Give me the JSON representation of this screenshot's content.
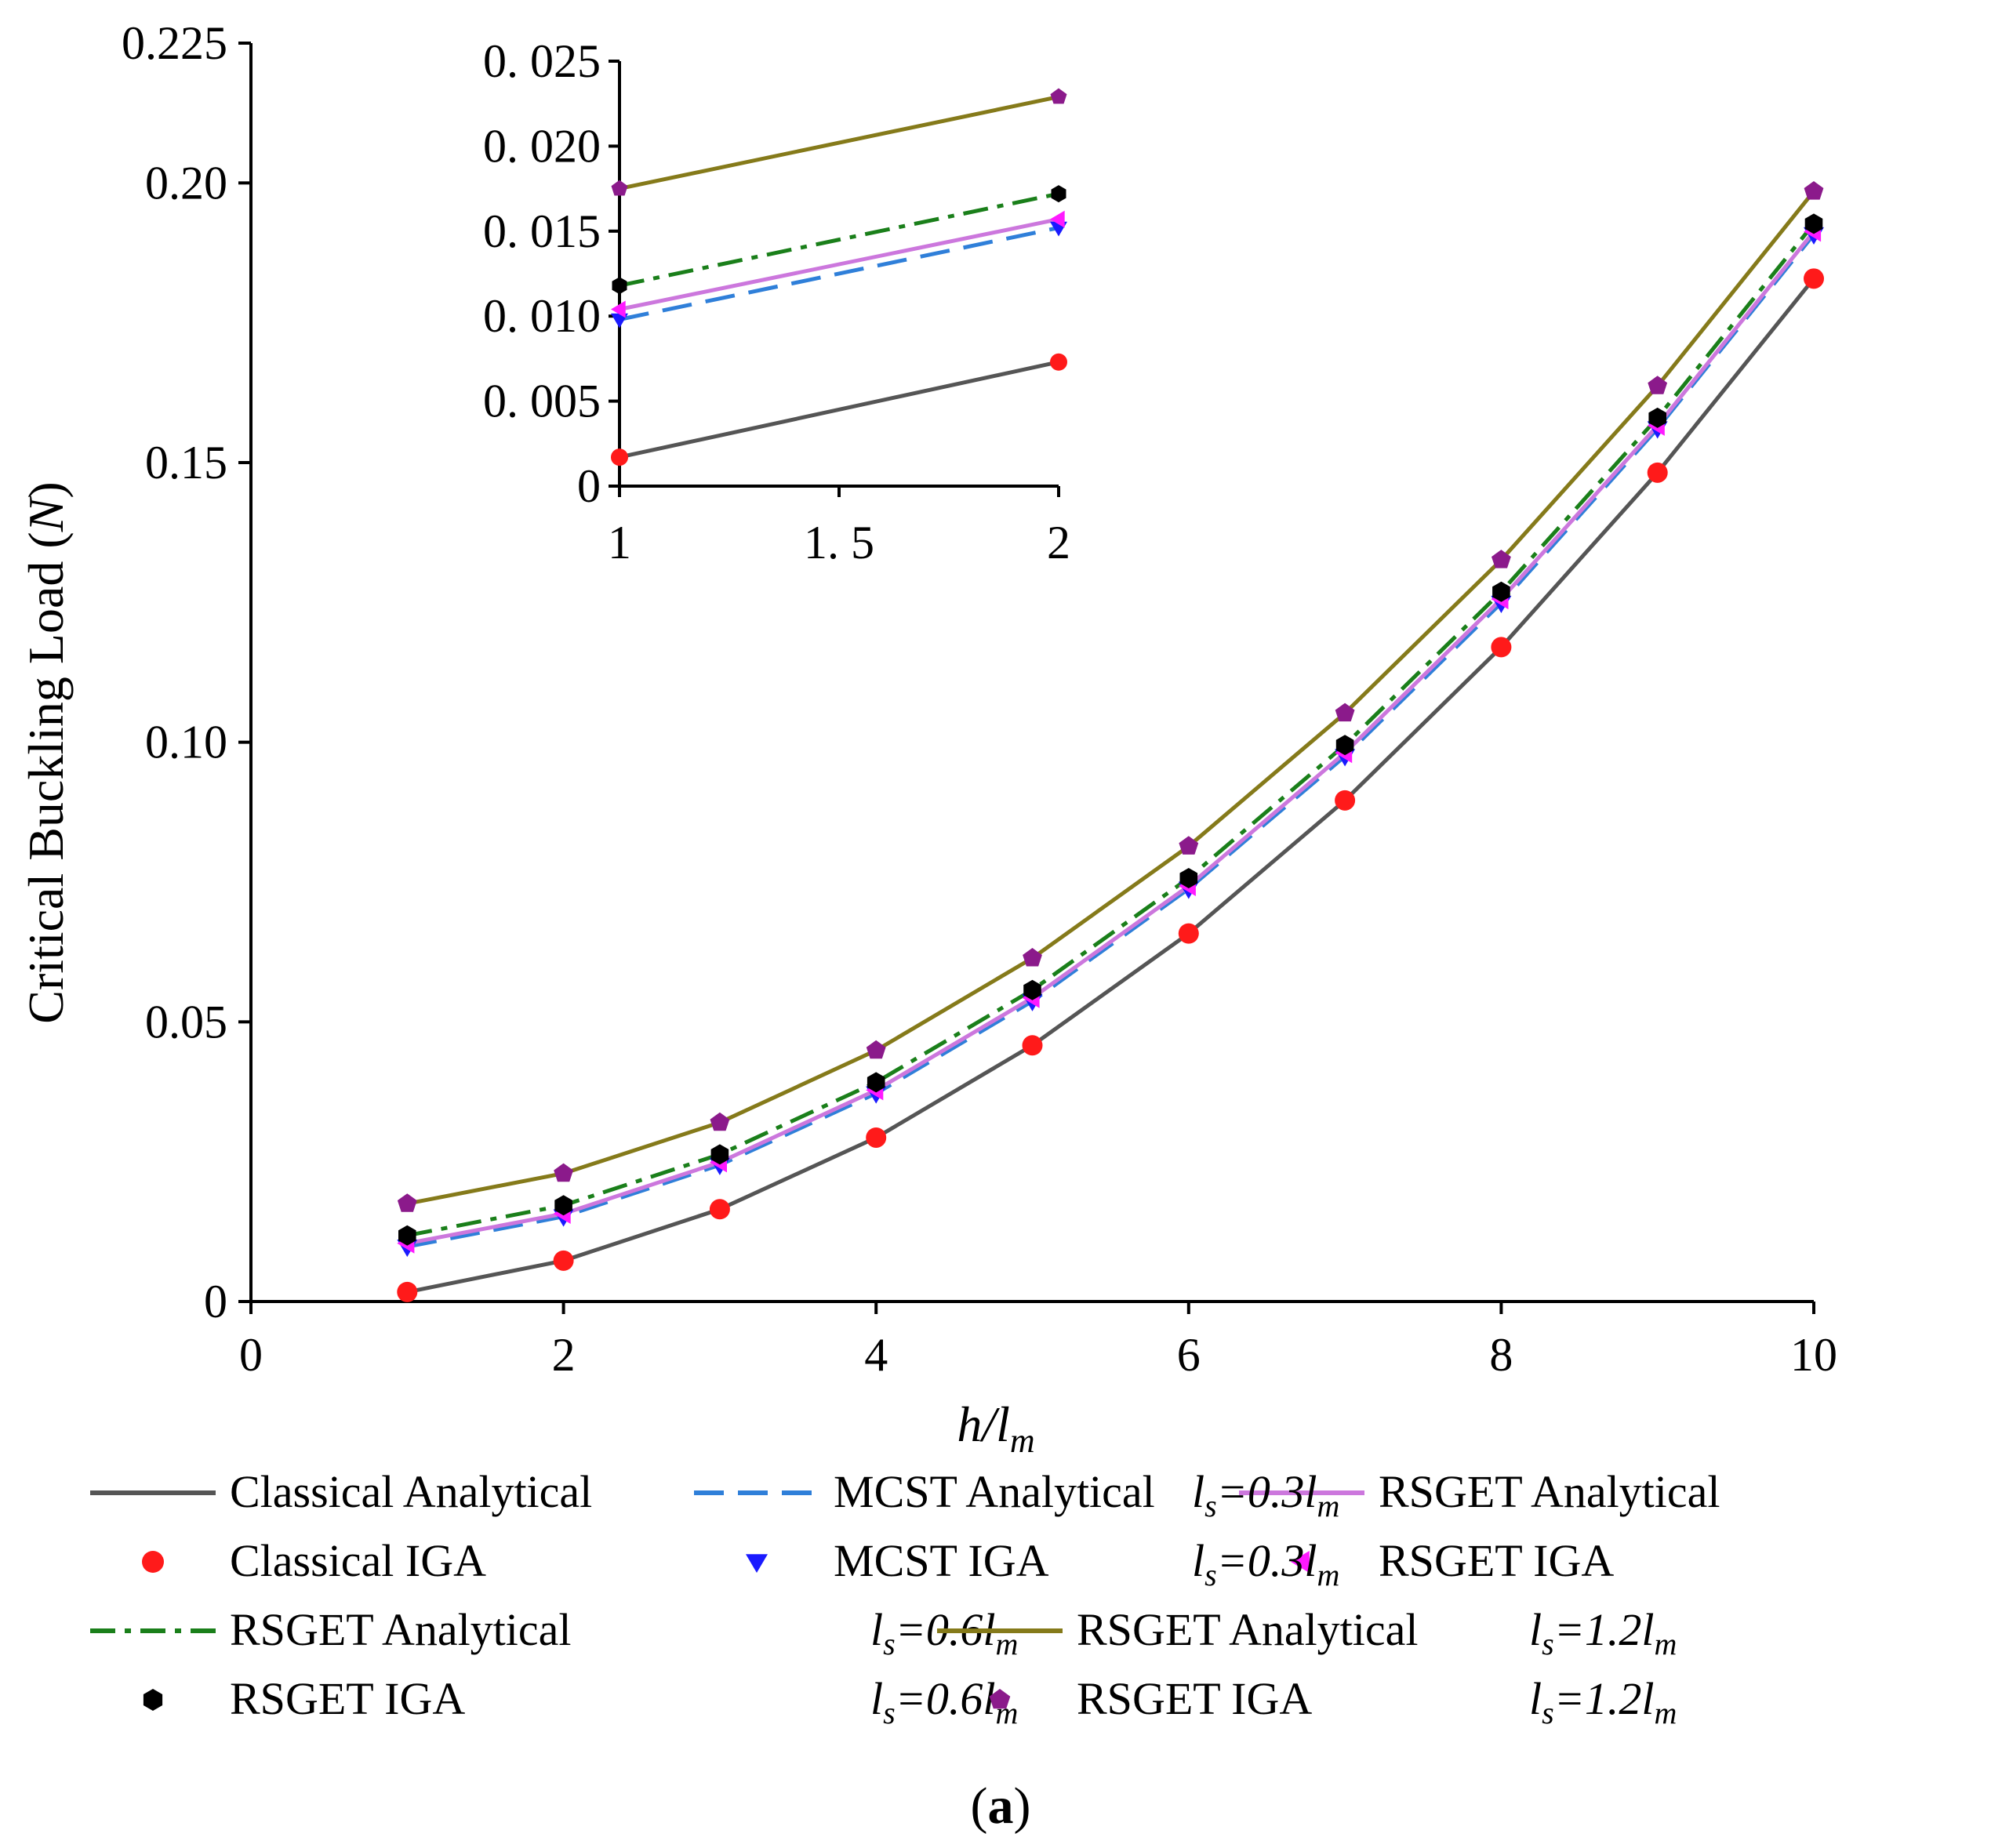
{
  "chart_data": [
    {
      "type": "line",
      "panel": "main",
      "xlabel_base": "h/l",
      "xlabel_sub": "m",
      "ylabel_text": "Critical Buckling Load (",
      "ylabel_unit": "N",
      "ylabel_close": ")",
      "xlim": [
        0,
        10
      ],
      "ylim": [
        0,
        0.225
      ],
      "x_ticks": [
        0,
        2,
        4,
        6,
        8,
        10
      ],
      "x_tick_labels": [
        "0",
        "2",
        "4",
        "6",
        "8",
        "10"
      ],
      "y_ticks": [
        0,
        0.05,
        0.1,
        0.15,
        0.2,
        0.225
      ],
      "y_tick_labels": [
        "0",
        "0.05",
        "0.10",
        "0.15",
        "0.20",
        "0.225"
      ],
      "x": [
        1,
        2,
        3,
        4,
        5,
        6,
        7,
        8,
        9,
        10
      ],
      "series": [
        {
          "name": "Classical Analytical",
          "kind": "line",
          "style": "solid",
          "color": "#555555",
          "values": [
            0.0017,
            0.0073,
            0.0165,
            0.0293,
            0.0458,
            0.0658,
            0.0896,
            0.117,
            0.1482,
            0.1829
          ]
        },
        {
          "name": "MCST Analytical",
          "kind": "line",
          "style": "dash",
          "color": "#2f7fd9",
          "values": [
            0.0098,
            0.0152,
            0.0244,
            0.0372,
            0.0537,
            0.0738,
            0.0975,
            0.1249,
            0.1561,
            0.1908
          ]
        },
        {
          "name": "RSGET Analytical ls=0.3lm",
          "kind": "line",
          "style": "solid",
          "color": "#cc77dd",
          "values": [
            0.0104,
            0.0157,
            0.0249,
            0.0378,
            0.0543,
            0.0743,
            0.0981,
            0.1256,
            0.1566,
            0.1913
          ]
        },
        {
          "name": "RSGET Analytical ls=0.6lm",
          "kind": "line",
          "style": "dashdot",
          "color": "#1a7f1a",
          "values": [
            0.0118,
            0.0172,
            0.0263,
            0.0392,
            0.0557,
            0.0757,
            0.0995,
            0.1269,
            0.158,
            0.1927
          ]
        },
        {
          "name": "RSGET Analytical ls=1.2lm",
          "kind": "line",
          "style": "solid",
          "color": "#857a1a",
          "values": [
            0.0175,
            0.0229,
            0.032,
            0.0449,
            0.0614,
            0.0814,
            0.1052,
            0.1326,
            0.1637,
            0.1985
          ]
        },
        {
          "name": "Classical IGA",
          "kind": "marker",
          "marker": "circle",
          "color": "#ff1a1a",
          "values": [
            0.0017,
            0.0073,
            0.0165,
            0.0293,
            0.0458,
            0.0658,
            0.0896,
            0.117,
            0.1482,
            0.1829
          ]
        },
        {
          "name": "MCST IGA",
          "kind": "marker",
          "marker": "triangle-down",
          "color": "#1a1aff",
          "values": [
            0.0098,
            0.0152,
            0.0244,
            0.0372,
            0.0537,
            0.0738,
            0.0975,
            0.1249,
            0.1561,
            0.1908
          ]
        },
        {
          "name": "RSGET IGA ls=0.3lm",
          "kind": "marker",
          "marker": "triangle-left",
          "color": "#ff1aff",
          "values": [
            0.0104,
            0.0157,
            0.0249,
            0.0378,
            0.0543,
            0.0743,
            0.0981,
            0.1256,
            0.1566,
            0.1913
          ]
        },
        {
          "name": "RSGET IGA ls=0.6lm",
          "kind": "marker",
          "marker": "hexagon",
          "color": "#000000",
          "values": [
            0.0118,
            0.0172,
            0.0263,
            0.0392,
            0.0557,
            0.0757,
            0.0995,
            0.1269,
            0.158,
            0.1927
          ]
        },
        {
          "name": "RSGET IGA ls=1.2lm",
          "kind": "marker",
          "marker": "pentagon",
          "color": "#8b1a8b",
          "values": [
            0.0175,
            0.0229,
            0.032,
            0.0449,
            0.0614,
            0.0814,
            0.1052,
            0.1326,
            0.1637,
            0.1985
          ]
        }
      ]
    },
    {
      "type": "line",
      "panel": "inset",
      "xlim": [
        1,
        2
      ],
      "ylim": [
        0,
        0.025
      ],
      "x_ticks": [
        1,
        1.5,
        2
      ],
      "x_tick_labels": [
        "1",
        "1. 5",
        "2"
      ],
      "y_ticks": [
        0,
        0.005,
        0.01,
        0.015,
        0.02,
        0.025
      ],
      "y_tick_labels": [
        "0",
        "0. 005",
        "0. 010",
        "0. 015",
        "0. 020",
        "0. 025"
      ],
      "x": [
        1,
        2
      ],
      "series_ref": "main"
    }
  ],
  "legend": [
    {
      "text": "Classical  Analytical",
      "suffix_base": "",
      "suffix_eq": "",
      "suffix_sub": ""
    },
    {
      "text": "MCST  Analytical",
      "suffix_base": "",
      "suffix_eq": "",
      "suffix_sub": ""
    },
    {
      "text": "RSGET  Analytical",
      "suffix_base": "l",
      "suffix_eq": "=0.3l",
      "suffix_sub": "m"
    },
    {
      "text": "Classical  IGA",
      "suffix_base": "",
      "suffix_eq": "",
      "suffix_sub": ""
    },
    {
      "text": "MCST  IGA",
      "suffix_base": "",
      "suffix_eq": "",
      "suffix_sub": ""
    },
    {
      "text": "RSGET   IGA",
      "suffix_base": "l",
      "suffix_eq": "=0.3l",
      "suffix_sub": "m"
    },
    {
      "text": "RSGET   Analytical",
      "suffix_base": "l",
      "suffix_eq": "=0.6l",
      "suffix_sub": "m"
    },
    {
      "text": "RSGET   Analytical",
      "suffix_base": "l",
      "suffix_eq": "=1.2l",
      "suffix_sub": "m"
    },
    {
      "text": "RSGET   IGA",
      "suffix_base": "l",
      "suffix_eq": "=0.6l",
      "suffix_sub": "m"
    },
    {
      "text": "RSGET   IGA",
      "suffix_base": "l",
      "suffix_eq": "=1.2l",
      "suffix_sub": "m"
    }
  ],
  "legend_subscript_s": "s",
  "caption": "(a)"
}
